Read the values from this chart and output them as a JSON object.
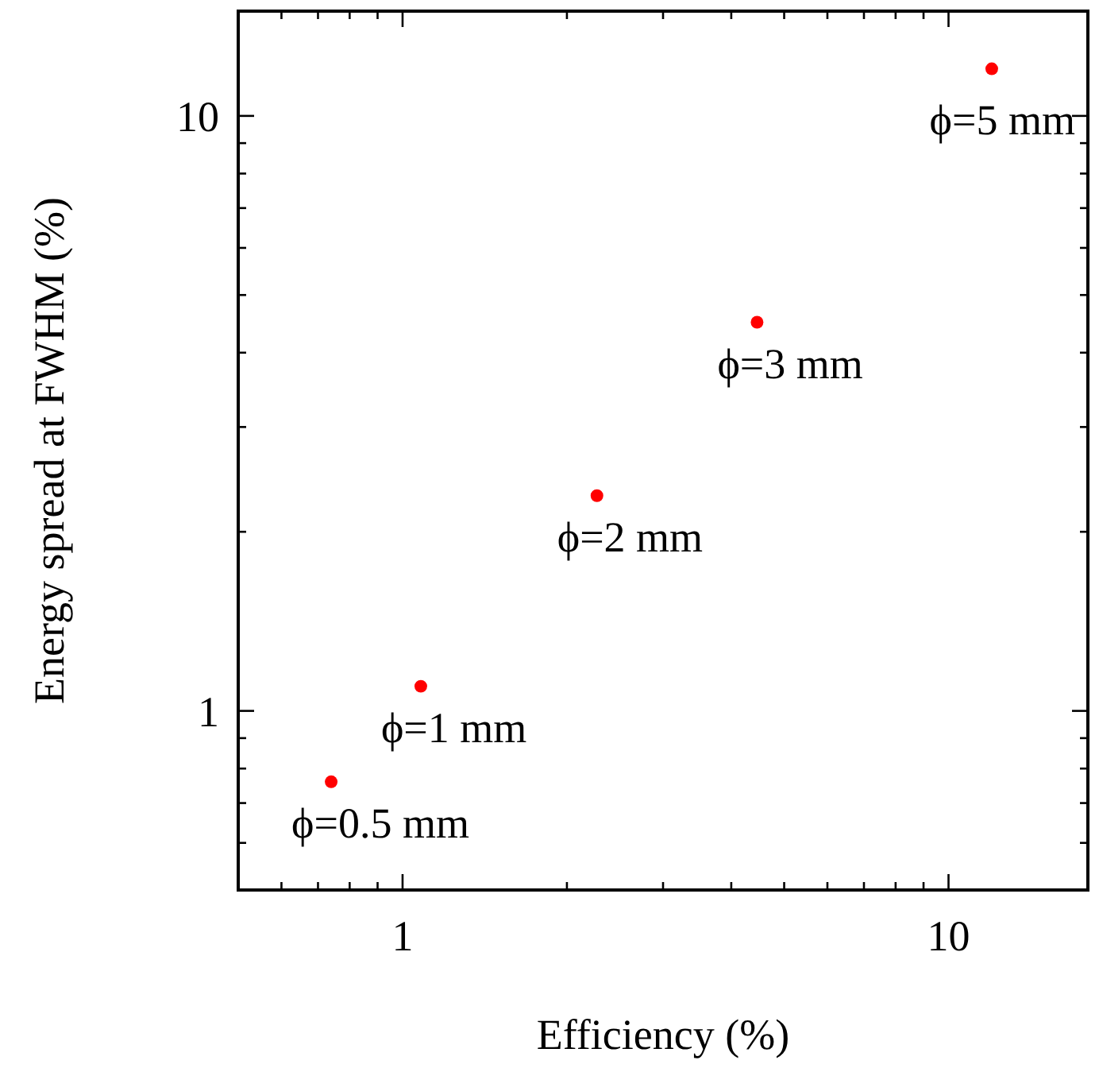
{
  "chart_data": {
    "type": "scatter",
    "xlabel": "Efficiency (%)",
    "ylabel": "Energy spread at FWHM (%)",
    "log": "xy",
    "marker": "circle",
    "grid": false,
    "x": [
      0.74,
      1.08,
      2.27,
      4.46,
      12.0
    ],
    "series": [
      {
        "color": "#ff0000",
        "values": [
          0.76,
          1.1,
          2.3,
          4.5,
          12.0
        ]
      }
    ],
    "xlim": [
      0.5,
      18
    ],
    "ylim": [
      0.5,
      15
    ],
    "xticks": [
      {
        "value": 0.6,
        "label": null
      },
      {
        "value": 0.7,
        "label": null
      },
      {
        "value": 0.8,
        "label": null
      },
      {
        "value": 0.9,
        "label": null
      },
      1,
      {
        "value": 2,
        "label": null
      },
      {
        "value": 3,
        "label": null
      },
      {
        "value": 4,
        "label": null
      },
      {
        "value": 5,
        "label": null
      },
      {
        "value": 6,
        "label": null
      },
      {
        "value": 7,
        "label": null
      },
      {
        "value": 8,
        "label": null
      },
      {
        "value": 9,
        "label": null
      },
      10
    ],
    "yticks": [
      {
        "value": 0.6,
        "label": null
      },
      {
        "value": 0.7,
        "label": null
      },
      {
        "value": 0.8,
        "label": null
      },
      {
        "value": 0.9,
        "label": null
      },
      1,
      {
        "value": 2,
        "label": null
      },
      {
        "value": 3,
        "label": null
      },
      {
        "value": 4,
        "label": null
      },
      {
        "value": 5,
        "label": null
      },
      {
        "value": 6,
        "label": null
      },
      {
        "value": 7,
        "label": null
      },
      {
        "value": 8,
        "label": null
      },
      {
        "value": 9,
        "label": null
      },
      10
    ],
    "annotations": [
      {
        "text": "ϕ=0.5 mm",
        "x": 0.74,
        "y": 0.76
      },
      {
        "text": "ϕ=1 mm",
        "x": 1.08,
        "y": 1.1
      },
      {
        "text": "ϕ=2 mm",
        "x": 2.27,
        "y": 2.3
      },
      {
        "text": "ϕ=3 mm",
        "x": 4.46,
        "y": 4.5
      },
      {
        "text": "ϕ=5 mm",
        "x": 12.0,
        "y": 12.0
      }
    ]
  }
}
